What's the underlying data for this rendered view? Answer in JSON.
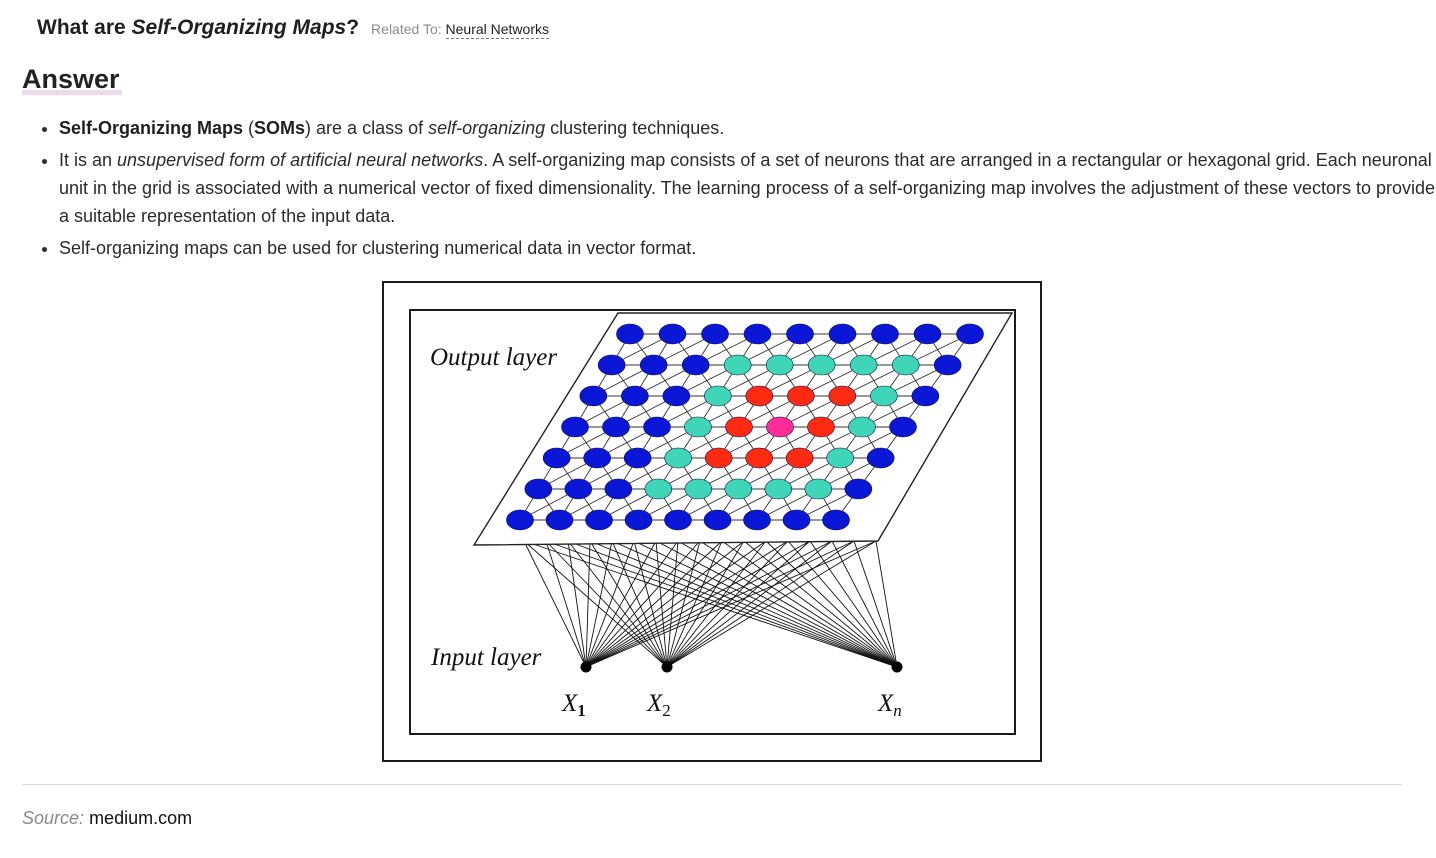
{
  "question": {
    "prefix": "What are ",
    "emphasis": "Self-Organizing Maps",
    "suffix": "?",
    "related_label": "Related To:",
    "related_link": "Neural Networks"
  },
  "answer_heading": "Answer",
  "bullets": [
    {
      "b1_bold": "Self-Organizing Maps",
      "b1_paren_open": " (",
      "b1_abbr": "SOMs",
      "b1_mid": ") are a class of ",
      "b1_italic": "self-organizing",
      "b1_end": " clustering techniques."
    },
    {
      "b2_start": "It is an ",
      "b2_italic": "unsupervised form of artificial neural networks",
      "b2_end": ". A self-organizing map consists of a set of neurons that are arranged in a rectangular or hexagonal grid. Each neuronal unit in the grid is associated with a numerical vector of fixed dimensionality. The learning process of a self-organizing map involves the adjustment of these vectors to provide a suitable representation of the input data."
    },
    {
      "b3_text": "Self-organizing maps can be used for clustering numerical data in vector format."
    }
  ],
  "figure": {
    "output_label": "Output layer",
    "input_label": "Input layer",
    "inputs": [
      {
        "base": "X",
        "sub": "1"
      },
      {
        "base": "X",
        "sub": "2"
      },
      {
        "base": "X",
        "sub": "n"
      }
    ],
    "grid_rows": [
      [
        "b",
        "b",
        "b",
        "b",
        "b",
        "b",
        "b",
        "b",
        "b"
      ],
      [
        "b",
        "b",
        "b",
        "c",
        "c",
        "c",
        "c",
        "c",
        "b"
      ],
      [
        "b",
        "b",
        "b",
        "c",
        "r",
        "r",
        "r",
        "c",
        "b"
      ],
      [
        "b",
        "b",
        "b",
        "c",
        "r",
        "p",
        "r",
        "c",
        "b"
      ],
      [
        "b",
        "b",
        "b",
        "c",
        "r",
        "r",
        "r",
        "c",
        "b"
      ],
      [
        "b",
        "b",
        "b",
        "c",
        "c",
        "c",
        "c",
        "c",
        "b"
      ],
      [
        "b",
        "b",
        "b",
        "b",
        "b",
        "b",
        "b",
        "b",
        "b"
      ]
    ],
    "node_colors": {
      "b": "#0b17d6",
      "c": "#3fd6b8",
      "r": "#ff2a12",
      "p": "#ff2d9a"
    }
  },
  "source": {
    "label": "Source:",
    "value": "medium.com"
  }
}
